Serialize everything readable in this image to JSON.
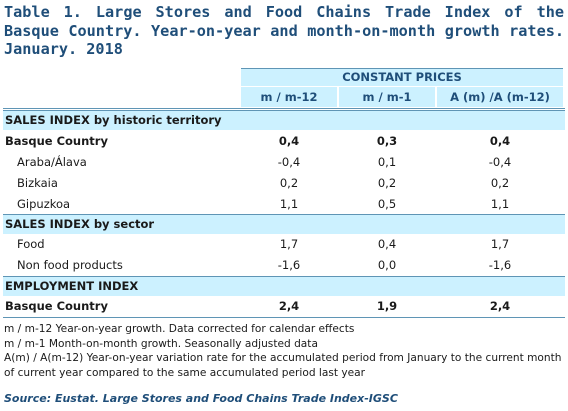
{
  "title": "Table 1. Large Stores and Food Chains Trade Index of the Basque Country. Year-on-year and month-on-month growth rates. January. 2018",
  "header": {
    "group": "CONSTANT PRICES",
    "columns": [
      "m / m-12",
      "m / m-1",
      "A (m) /A (m-12)"
    ]
  },
  "sections": {
    "territory": {
      "label": "SALES INDEX by historic territory",
      "rows": [
        {
          "label": "Basque Country",
          "values": [
            "0,4",
            "0,3",
            "0,4"
          ]
        },
        {
          "label": "Araba/Álava",
          "values": [
            "-0,4",
            "0,1",
            "-0,4"
          ]
        },
        {
          "label": "Bizkaia",
          "values": [
            "0,2",
            "0,2",
            "0,2"
          ]
        },
        {
          "label": "Gipuzkoa",
          "values": [
            "1,1",
            "0,5",
            "1,1"
          ]
        }
      ]
    },
    "sector": {
      "label": "SALES INDEX by sector",
      "rows": [
        {
          "label": "Food",
          "values": [
            "1,7",
            "0,4",
            "1,7"
          ]
        },
        {
          "label": "Non food products",
          "values": [
            "-1,6",
            "0,0",
            "-1,6"
          ]
        }
      ]
    },
    "employment": {
      "label": "EMPLOYMENT INDEX",
      "rows": [
        {
          "label": "Basque Country",
          "values": [
            "2,4",
            "1,9",
            "2,4"
          ]
        }
      ]
    }
  },
  "notes": [
    "m / m-12 Year-on-year growth. Data corrected for calendar effects",
    "m / m-1 Month-on-month growth. Seasonally adjusted data",
    "A(m) / A(m-12) Year-on-year variation rate for the accumulated period from January to the current month of current year compared to the same accumulated period last year"
  ],
  "source": "Source: Eustat. Large Stores and Food Chains Trade Index-IGSC",
  "colors": {
    "accent": "#1f4e79",
    "band": "#ccf1ff",
    "rule": "#5f95b5"
  }
}
